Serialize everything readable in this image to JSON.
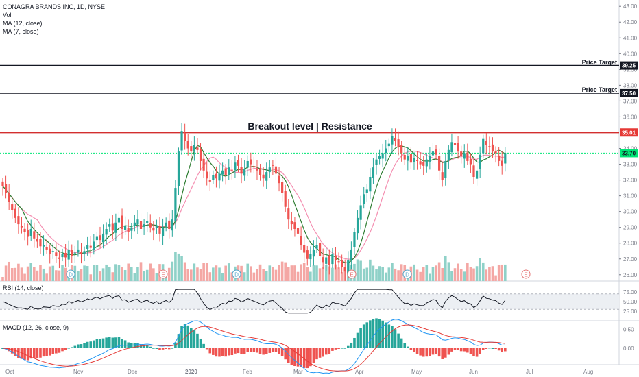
{
  "legend": {
    "symbol_line": "CONAGRA BRANDS INC, 1D, NYSE",
    "vol_label": "Vol",
    "ma12_label": "MA (12, close)",
    "ma7_label": "MA (7, close)"
  },
  "annotation": {
    "title": "Breakout level | Resistance",
    "price_target_label": "Price Target"
  },
  "rsi_label": "RSI (14, close)",
  "macd_label": "MACD (12, 26, close, 9)",
  "price_axis": {
    "ticks": [
      "43.00",
      "42.00",
      "41.00",
      "40.00",
      "39.00",
      "38.00",
      "37.00",
      "36.00",
      "34.00",
      "33.00",
      "32.00",
      "31.00",
      "30.00",
      "29.00",
      "28.00",
      "27.00",
      "26.00"
    ],
    "badges": [
      {
        "text": "39.25",
        "color": "#131722"
      },
      {
        "text": "37.50",
        "color": "#131722"
      },
      {
        "text": "35.01",
        "color": "#e53935"
      },
      {
        "text": "33.70",
        "color": "#00e676"
      }
    ]
  },
  "rsi_axis": {
    "ticks": [
      "75.00",
      "50.00",
      "25.00"
    ]
  },
  "macd_axis": {
    "ticks": [
      "0.50",
      "0.00"
    ]
  },
  "time_axis": {
    "ticks": [
      "Oct",
      "Nov",
      "Dec",
      "2020",
      "Feb",
      "Mar",
      "Apr",
      "May",
      "Jun",
      "Jul",
      "Aug"
    ]
  },
  "event_markers": [
    "D",
    "E",
    "D",
    "E",
    "D",
    "E"
  ],
  "colors": {
    "up": "#26a69a",
    "down": "#ef5350",
    "resistance": "#d32f2f",
    "target_line": "#131722",
    "ma12": "#f48fb1",
    "ma7": "#2e7d32",
    "current_price": "#00e676",
    "macd_line": "#2196f3",
    "signal_line": "#e53935"
  },
  "chart_data": {
    "type": "candlestick",
    "series": [
      {
        "name": "CONAGRA BRANDS INC, 1D, NYSE",
        "role": "ohlc"
      },
      {
        "name": "MA (12, close)",
        "role": "moving-average"
      },
      {
        "name": "MA (7, close)",
        "role": "moving-average"
      }
    ],
    "horizontal_levels": [
      {
        "label": "Price Target",
        "value": 39.25
      },
      {
        "label": "Price Target",
        "value": 37.5
      },
      {
        "label": "Breakout level | Resistance",
        "value": 35.01
      },
      {
        "label": "last close",
        "value": 33.7
      }
    ],
    "ylim": [
      25.6,
      43.4
    ],
    "y_ticks": [
      43,
      42,
      41,
      40,
      39,
      38,
      37,
      36,
      34,
      33,
      32,
      31,
      30,
      29,
      28,
      27,
      26
    ],
    "closes": [
      31.6,
      31.2,
      30.6,
      30.1,
      29.6,
      29.2,
      29.0,
      28.7,
      28.4,
      28.9,
      28.3,
      28.1,
      27.8,
      27.9,
      27.6,
      27.3,
      27.5,
      27.2,
      27.0,
      27.3,
      27.1,
      27.6,
      27.2,
      27.4,
      27.6,
      27.3,
      27.5,
      27.9,
      27.7,
      28.1,
      28.4,
      28.2,
      28.6,
      28.9,
      29.2,
      28.8,
      29.3,
      29.6,
      28.9,
      29.1,
      28.7,
      29.0,
      29.3,
      29.5,
      28.9,
      29.2,
      29.4,
      29.0,
      28.8,
      29.1,
      28.6,
      29.0,
      29.3,
      28.9,
      29.5,
      31.5,
      33.8,
      35.1,
      34.5,
      34.0,
      33.8,
      34.2,
      33.9,
      33.2,
      32.6,
      32.1,
      31.9,
      32.3,
      32.1,
      32.4,
      32.6,
      32.3,
      32.8,
      32.6,
      33.1,
      32.9,
      32.4,
      32.7,
      33.2,
      33.0,
      32.8,
      32.6,
      32.3,
      32.1,
      32.5,
      32.8,
      32.9,
      32.4,
      31.8,
      31.2,
      30.3,
      29.5,
      29.2,
      28.9,
      28.6,
      27.9,
      27.4,
      27.0,
      27.3,
      27.6,
      27.9,
      27.2,
      26.8,
      27.1,
      26.6,
      27.3,
      26.9,
      26.8,
      26.5,
      26.2,
      26.9,
      27.6,
      28.7,
      29.6,
      30.4,
      31.1,
      31.4,
      32.2,
      32.8,
      33.3,
      33.5,
      33.7,
      34.0,
      34.3,
      34.8,
      34.5,
      34.1,
      33.7,
      33.3,
      33.5,
      33.1,
      33.4,
      33.2,
      33.0,
      32.9,
      33.3,
      33.5,
      33.8,
      33.6,
      32.6,
      32.0,
      33.2,
      33.9,
      34.4,
      34.2,
      33.8,
      33.5,
      33.7,
      33.2,
      33.0,
      32.2,
      32.6,
      33.6,
      34.6,
      34.2,
      34.1,
      33.8,
      33.7,
      33.2,
      32.9,
      33.7
    ]
  }
}
